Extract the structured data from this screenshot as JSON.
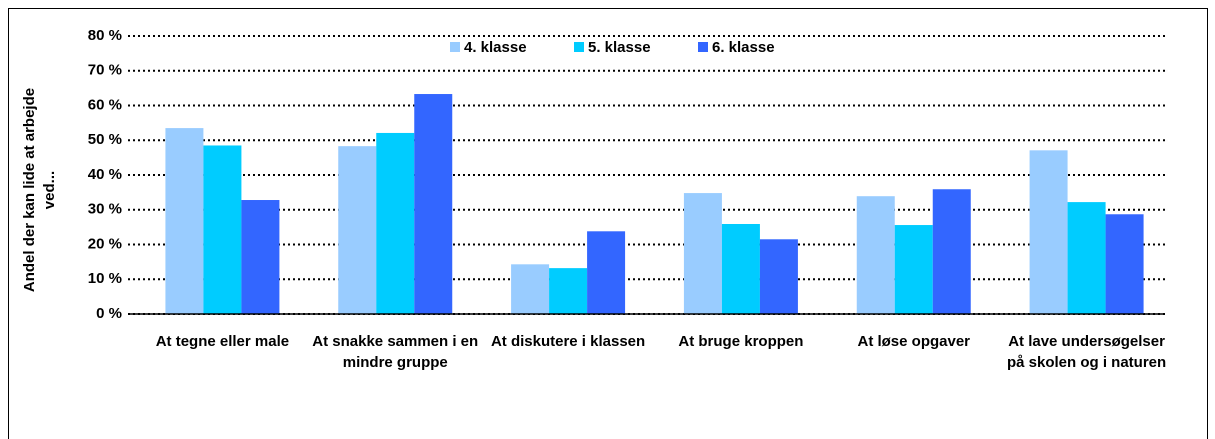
{
  "chart_data": {
    "type": "bar",
    "y_label": "Andel der kan lide at arbejde ved...",
    "categories": [
      "At tegne eller male",
      "At snakke sammen i en mindre gruppe",
      "At diskutere i klassen",
      "At bruge kroppen",
      "At løse opgaver",
      "At lave undersøgelser på skolen og i naturen"
    ],
    "series": [
      {
        "name": "4. klasse",
        "color": "#99ccff",
        "values": [
          53.5,
          48.3,
          14.3,
          34.8,
          33.9,
          47.1
        ]
      },
      {
        "name": "5. klasse",
        "color": "#00ccff",
        "values": [
          48.5,
          52.1,
          13.2,
          25.9,
          25.6,
          32.2
        ]
      },
      {
        "name": "6. klasse",
        "color": "#3366ff",
        "values": [
          32.8,
          63.3,
          23.8,
          21.5,
          35.9,
          28.7
        ]
      }
    ],
    "ylim": [
      0,
      80
    ],
    "yticks": [
      {
        "value": 0,
        "label": "0 %"
      },
      {
        "value": 10,
        "label": "10 %"
      },
      {
        "value": 20,
        "label": "20 %"
      },
      {
        "value": 30,
        "label": "30 %"
      },
      {
        "value": 40,
        "label": "40 %"
      },
      {
        "value": 50,
        "label": "50 %"
      },
      {
        "value": 60,
        "label": "60 %"
      },
      {
        "value": 70,
        "label": "70 %"
      },
      {
        "value": 80,
        "label": "80 %"
      }
    ],
    "grid": true,
    "legend": "top"
  }
}
